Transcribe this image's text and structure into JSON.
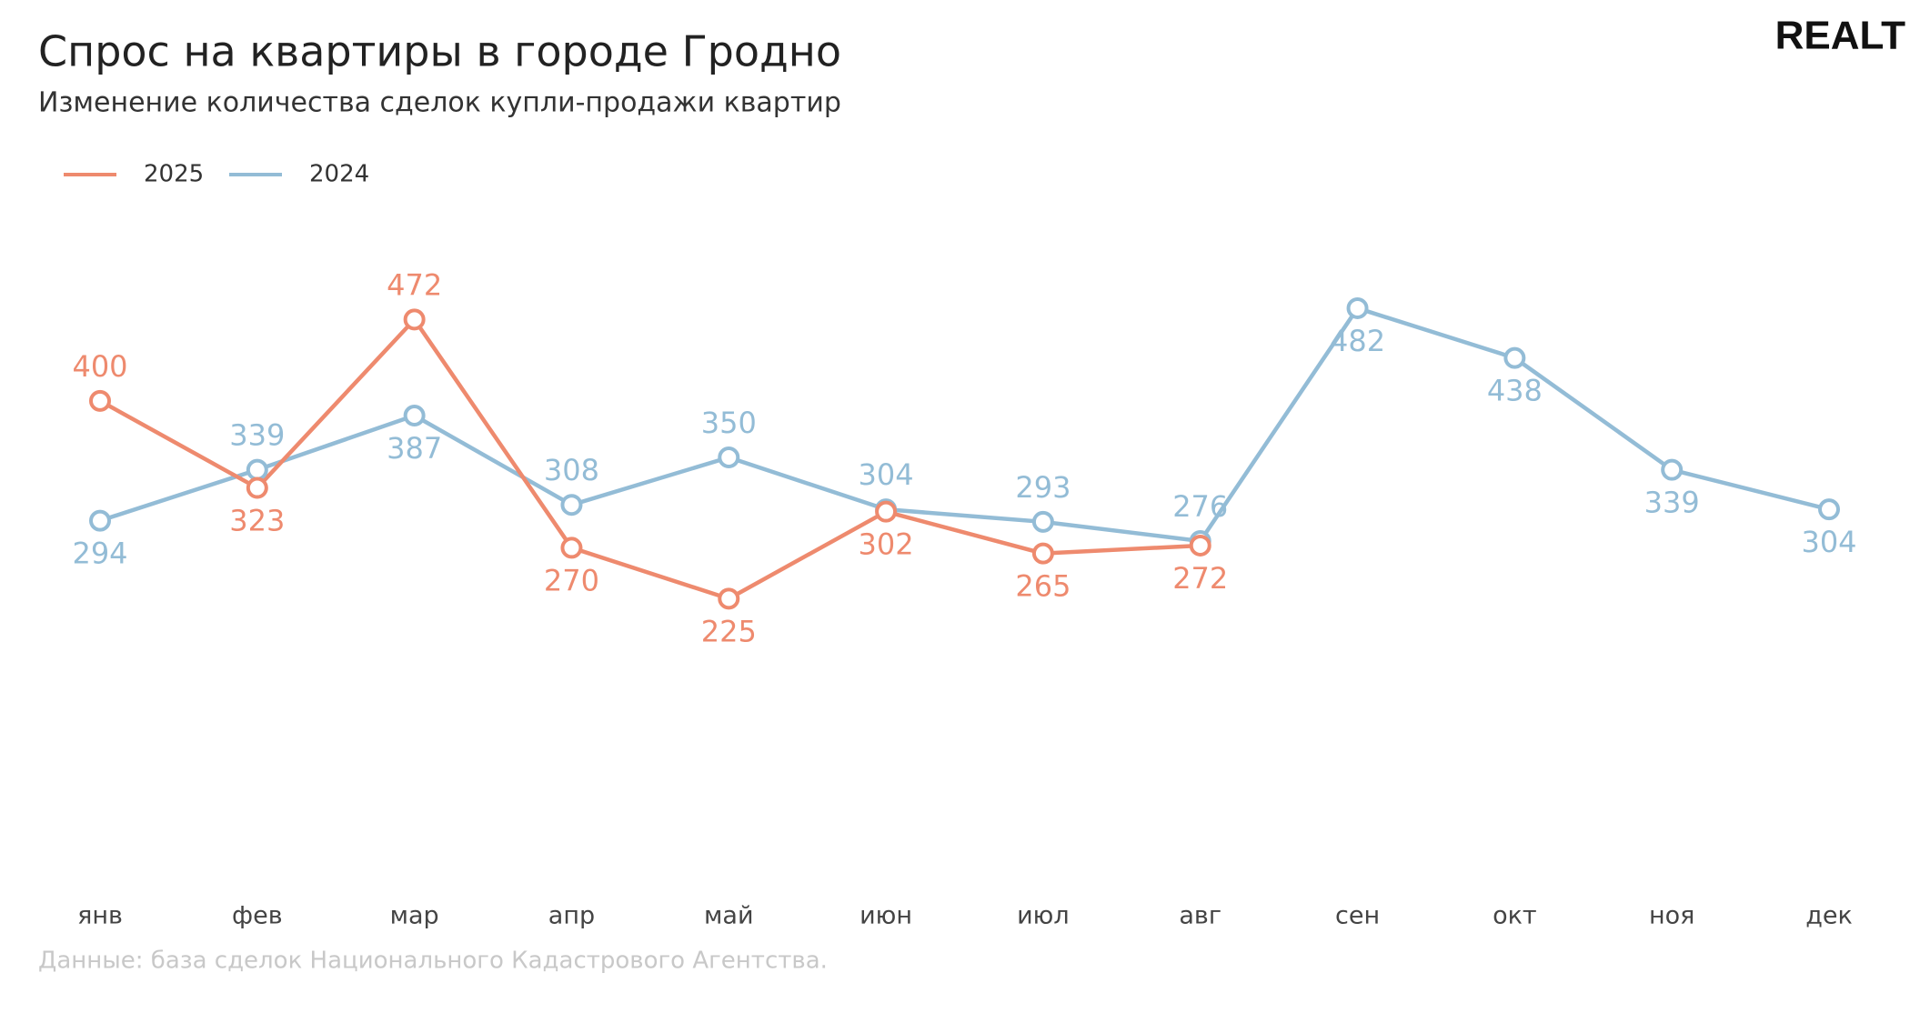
{
  "chart_data": {
    "type": "line",
    "title": "Спрос на квартиры в городе Гродно",
    "subtitle": "Изменение количества сделок купли-продажи квартир",
    "brand": "REALT",
    "source": "Данные: база сделок Национального Кадастрового Агентства.",
    "categories": [
      "янв",
      "фев",
      "мар",
      "апр",
      "май",
      "июн",
      "июл",
      "авг",
      "сен",
      "окт",
      "ноя",
      "дек"
    ],
    "ylim": [
      0,
      560
    ],
    "grid": false,
    "legend": "top-left",
    "series": [
      {
        "name": "2025",
        "color": "#ee8a6e",
        "values": [
          400,
          323,
          472,
          270,
          225,
          302,
          265,
          272,
          null,
          null,
          null,
          null
        ]
      },
      {
        "name": "2024",
        "color": "#93bcd6",
        "values": [
          294,
          339,
          387,
          308,
          350,
          304,
          293,
          276,
          482,
          438,
          339,
          304
        ]
      }
    ]
  }
}
